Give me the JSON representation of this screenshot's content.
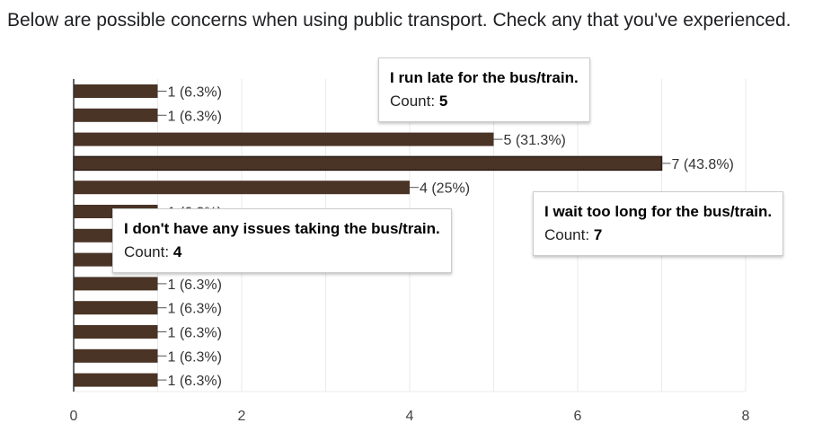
{
  "question": "Below are possible concerns when using public transport. Check any that you've experienced.",
  "colors": {
    "bar": "#4a3426",
    "bar_outline": "#2b1d14",
    "gridline": "#ebebeb",
    "axis": "#333333",
    "highlight_bar": "#4a3426"
  },
  "chart_data": {
    "type": "bar",
    "orientation": "horizontal",
    "values": [
      1,
      1,
      5,
      7,
      4,
      1,
      1,
      1,
      1,
      1,
      1,
      1,
      1
    ],
    "data_labels": [
      "1 (6.3%)",
      "1 (6.3%)",
      "5 (31.3%)",
      "7 (43.8%)",
      "4 (25%)",
      "1 (6.3%)",
      "1 (6.3%)",
      "1 (6.3%)",
      "1 (6.3%)",
      "1 (6.3%)",
      "1 (6.3%)",
      "1 (6.3%)",
      "1 (6.3%)"
    ],
    "xlim": [
      0,
      8
    ],
    "xticks": [
      "0",
      "2",
      "4",
      "6",
      "8"
    ],
    "grid": true,
    "highlighted_index": 3
  },
  "tooltips": [
    {
      "title": "I run late for the bus/train.",
      "count_label": "Count: ",
      "count": "5"
    },
    {
      "title": "I wait too long for the bus/train.",
      "count_label": "Count: ",
      "count": "7"
    },
    {
      "title": "I don't have any issues taking the bus/train.",
      "count_label": "Count: ",
      "count": "4"
    }
  ]
}
